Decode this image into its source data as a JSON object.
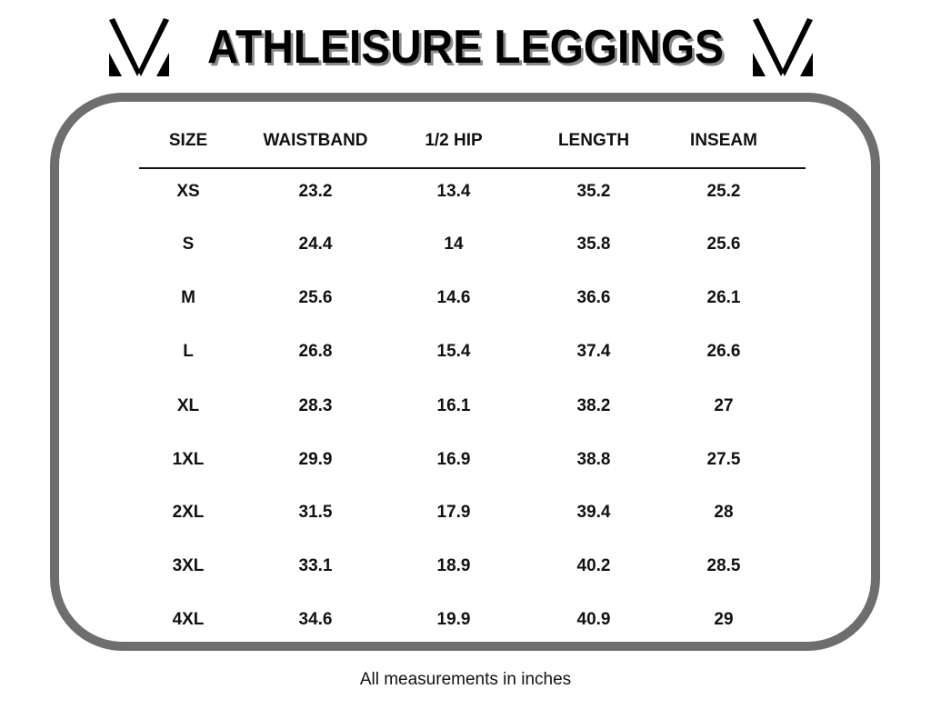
{
  "title": "ATHLEISURE LEGGINGS",
  "logo": "brand V logo",
  "table": {
    "headers": [
      "SIZE",
      "WAISTBAND",
      "1/2 HIP",
      "LENGTH",
      "INSEAM"
    ],
    "rows": [
      [
        "XS",
        "23.2",
        "13.4",
        "35.2",
        "25.2"
      ],
      [
        "S",
        "24.4",
        "14",
        "35.8",
        "25.6"
      ],
      [
        "M",
        "25.6",
        "14.6",
        "36.6",
        "26.1"
      ],
      [
        "L",
        "26.8",
        "15.4",
        "37.4",
        "26.6"
      ],
      [
        "XL",
        "28.3",
        "16.1",
        "38.2",
        "27"
      ],
      [
        "1XL",
        "29.9",
        "16.9",
        "38.8",
        "27.5"
      ],
      [
        "2XL",
        "31.5",
        "17.9",
        "39.4",
        "28"
      ],
      [
        "3XL",
        "33.1",
        "18.9",
        "40.2",
        "28.5"
      ],
      [
        "4XL",
        "34.6",
        "19.9",
        "40.9",
        "29"
      ]
    ]
  },
  "footer": "All measurements in inches",
  "colors": {
    "frame": "#6e6e6e",
    "title_shadow": "#8a8a8a"
  }
}
